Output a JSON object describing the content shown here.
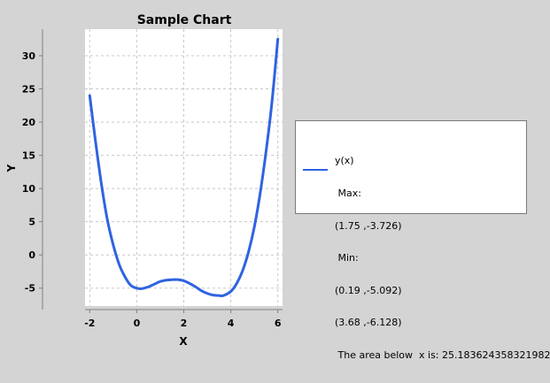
{
  "chart_data": {
    "type": "line",
    "title": "Sample Chart",
    "xlabel": "X",
    "ylabel": "Y",
    "xlim": [
      -2.2,
      6.2
    ],
    "ylim": [
      -7.7,
      34
    ],
    "x_ticks": [
      "-2",
      "0",
      "2",
      "4",
      "6"
    ],
    "y_ticks": [
      "-5",
      "0",
      "5",
      "10",
      "15",
      "20",
      "25",
      "30"
    ],
    "grid": true,
    "legend_position": "right",
    "line_color": "#2f63e0",
    "series": [
      {
        "name": "y(x)",
        "x": [
          -2.0,
          -1.75,
          -1.5,
          -1.25,
          -1.0,
          -0.75,
          -0.5,
          -0.25,
          0.0,
          0.19,
          0.5,
          0.75,
          1.0,
          1.25,
          1.5,
          1.75,
          2.0,
          2.25,
          2.5,
          2.75,
          3.0,
          3.25,
          3.5,
          3.68,
          4.0,
          4.25,
          4.5,
          4.75,
          5.0,
          5.25,
          5.5,
          5.75,
          6.0
        ],
        "y": [
          24.0,
          17.0,
          10.6,
          5.3,
          1.5,
          -1.4,
          -3.3,
          -4.6,
          -5.0,
          -5.092,
          -4.8,
          -4.4,
          -4.0,
          -3.8,
          -3.73,
          -3.726,
          -3.9,
          -4.3,
          -4.8,
          -5.4,
          -5.8,
          -6.05,
          -6.12,
          -6.128,
          -5.5,
          -4.3,
          -2.4,
          0.4,
          4.2,
          9.3,
          15.6,
          23.0,
          32.5
        ]
      }
    ],
    "legend_lines": [
      "y(x)",
      " Max:",
      "(1.75 ,-3.726)",
      " Min:",
      "(0.19 ,-5.092)",
      "(3.68 ,-6.128)",
      " The area below  x is: 25.183624358321982"
    ]
  }
}
